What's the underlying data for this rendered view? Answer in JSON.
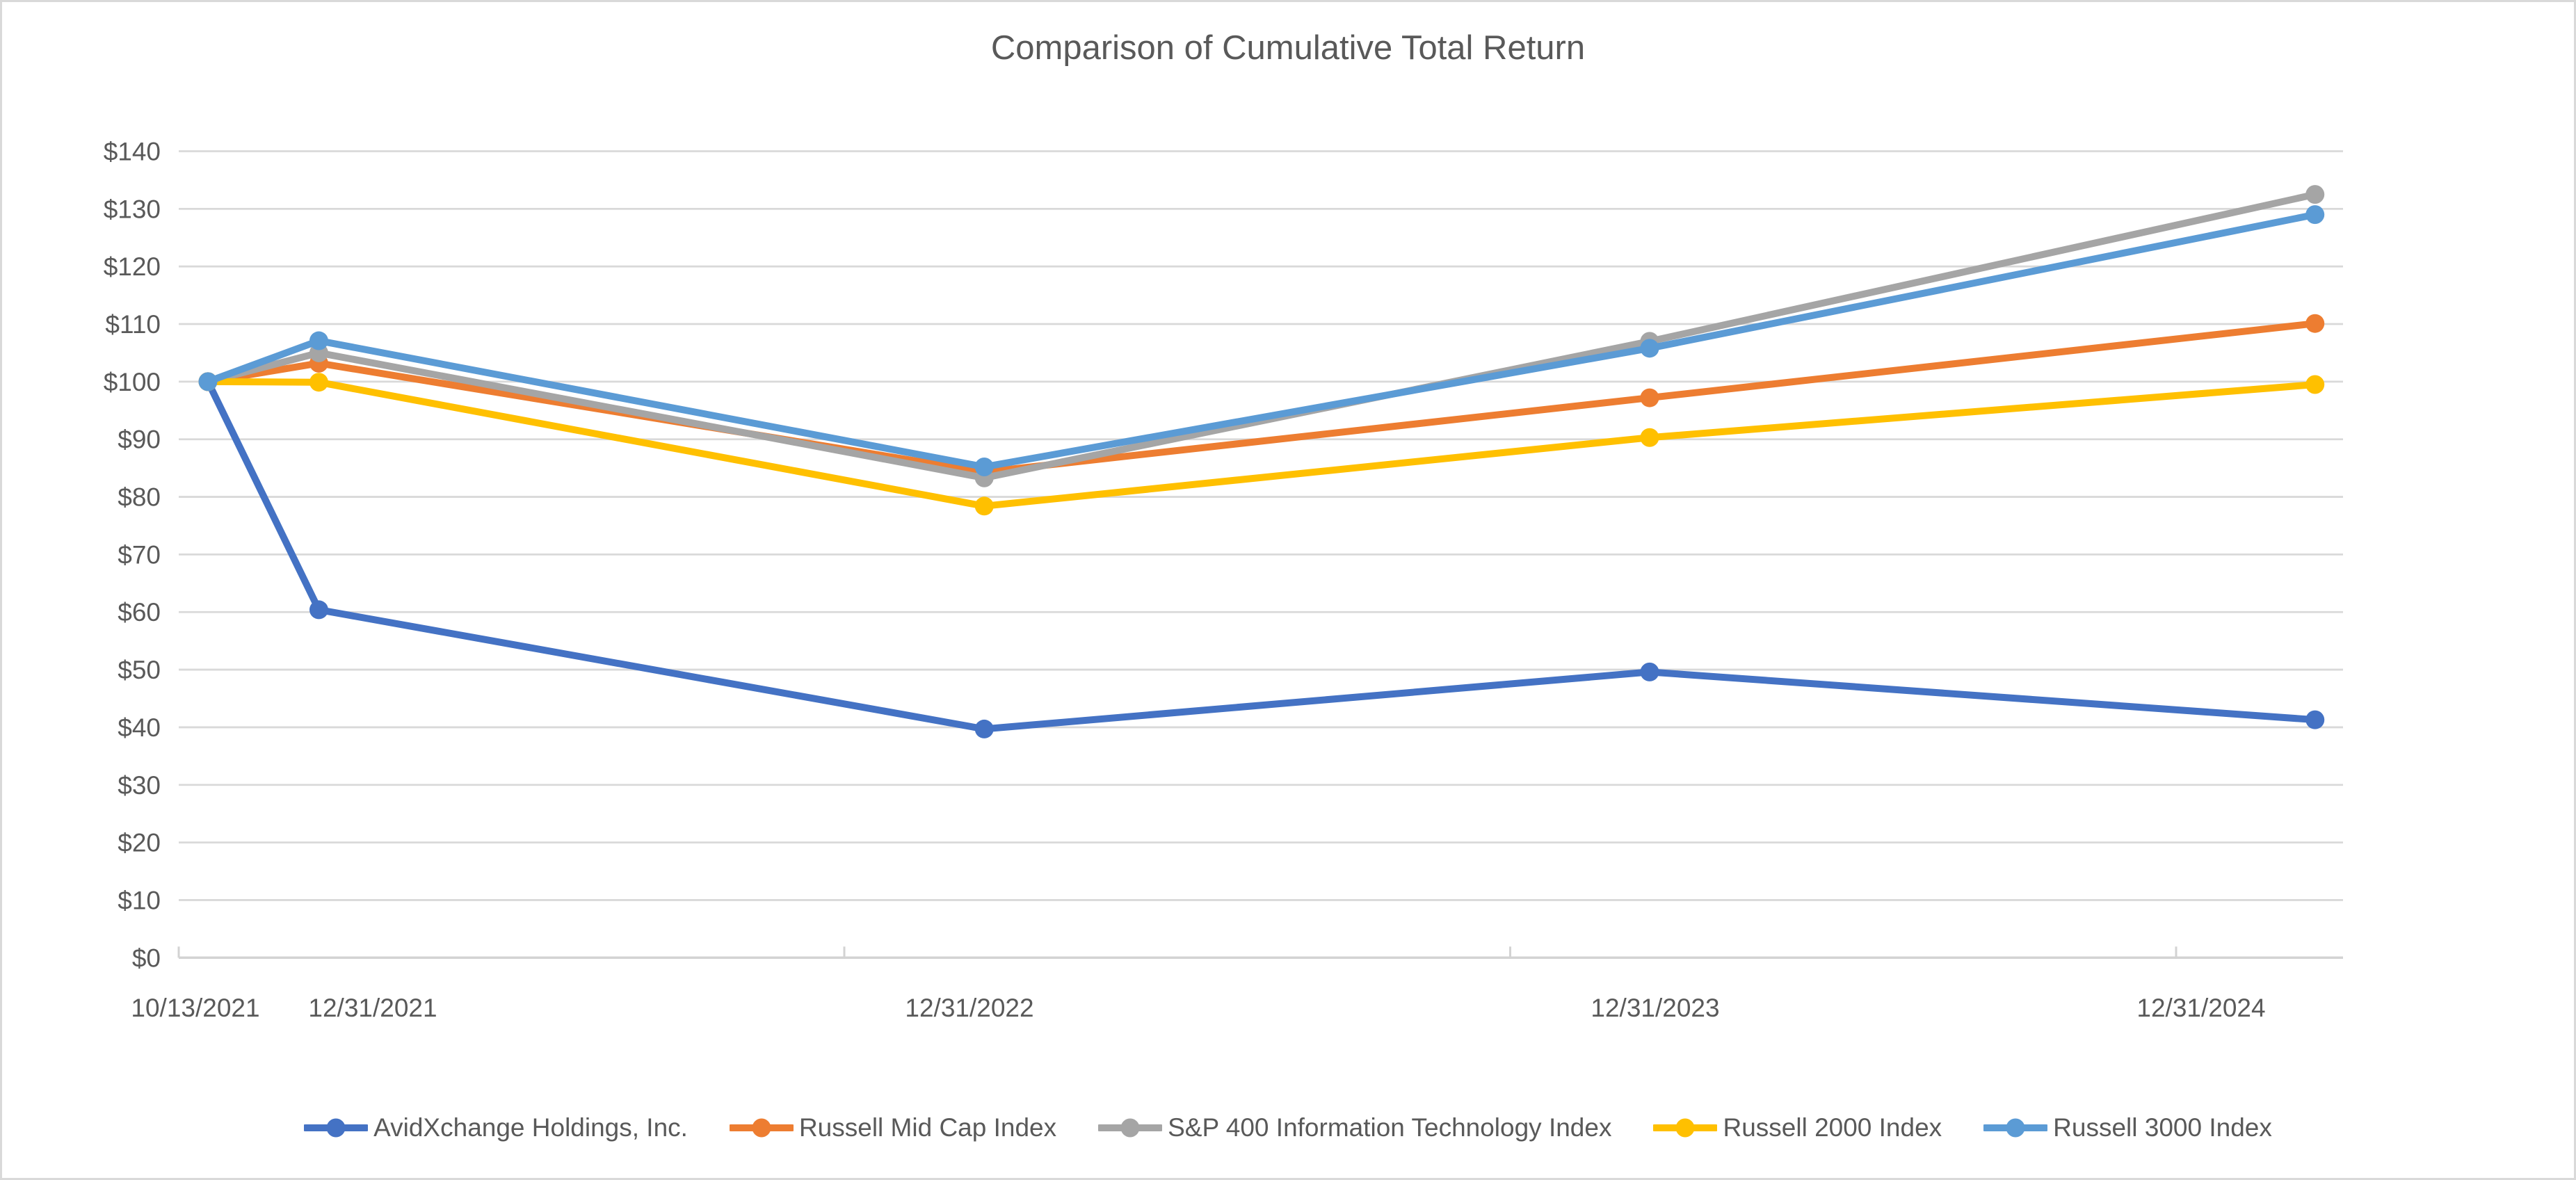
{
  "page": {
    "background_color": "#ffffff",
    "border_color": "#d9d9d9"
  },
  "chart_data": {
    "type": "line",
    "title": "Comparison of Cumulative Total Return",
    "categories": [
      "10/13/2021",
      "12/31/2021",
      "12/31/2022",
      "12/31/2023",
      "12/31/2024"
    ],
    "series": [
      {
        "name": "AvidXchange Holdings, Inc.",
        "color": "#4472C4",
        "values": [
          100,
          60.4,
          39.7,
          49.6,
          41.3
        ]
      },
      {
        "name": "Russell Mid Cap Index",
        "color": "#ED7D31",
        "values": [
          100,
          103.2,
          84.3,
          97.2,
          110.1
        ]
      },
      {
        "name": "S&P 400 Information Technology Index",
        "color": "#A5A5A5",
        "values": [
          100,
          105.0,
          83.3,
          107.0,
          132.5
        ]
      },
      {
        "name": "Russell 2000 Index",
        "color": "#FFC000",
        "values": [
          100,
          99.9,
          78.4,
          90.3,
          99.5
        ]
      },
      {
        "name": "Russell 3000 Index",
        "color": "#5B9BD5",
        "values": [
          100,
          107.1,
          85.2,
          105.8,
          129.0
        ]
      }
    ],
    "xlabel": "",
    "ylabel": "",
    "ylim": [
      0,
      140
    ],
    "y_step": 10,
    "y_tick_labels": [
      "$0",
      "$10",
      "$20",
      "$30",
      "$40",
      "$50",
      "$60",
      "$70",
      "$80",
      "$90",
      "$100",
      "$110",
      "$120",
      "$130",
      "$140"
    ],
    "x_months_from_start": [
      0,
      2,
      14,
      26,
      38
    ],
    "grid": true,
    "legend_position": "bottom",
    "marker": "circle",
    "text_color": "#595959",
    "grid_color": "#d9d9d9",
    "axis_line_color": "#d3d3d3"
  }
}
